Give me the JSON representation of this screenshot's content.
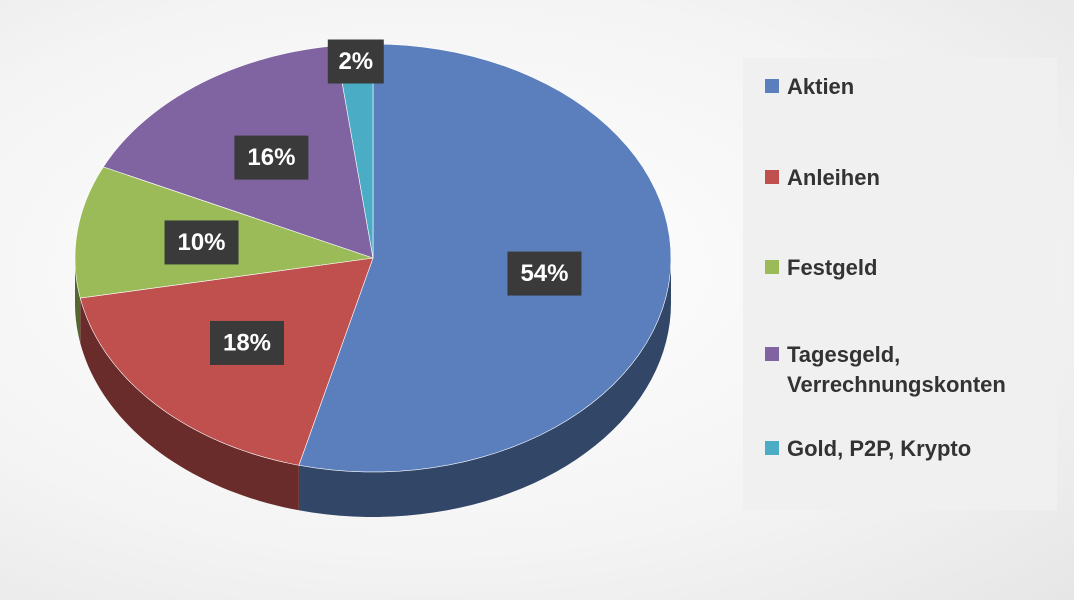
{
  "chart_data": {
    "type": "pie",
    "categories": [
      "Aktien",
      "Anleihen",
      "Festgeld",
      "Tagesgeld, Verrechnungskonten",
      "Gold, P2P, Krypto"
    ],
    "values": [
      54,
      18,
      10,
      16,
      2
    ],
    "value_labels": [
      "54%",
      "18%",
      "10%",
      "16%",
      "2%"
    ],
    "colors": [
      "#5b7fbd",
      "#c0504d",
      "#9bbb59",
      "#8064a2",
      "#4bacc6"
    ],
    "legend": "right"
  }
}
